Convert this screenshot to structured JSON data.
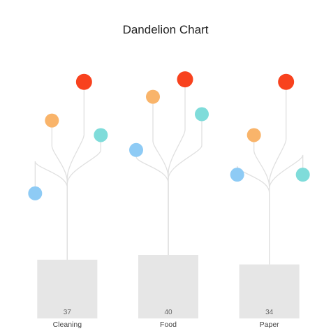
{
  "chart_data": {
    "type": "dandelion",
    "title": "Dandelion Chart",
    "categories": [
      "Cleaning",
      "Food",
      "Paper"
    ],
    "values": [
      37,
      40,
      34
    ],
    "ylim": [
      0,
      45
    ],
    "grid": false,
    "legend": "none",
    "flowers": [
      {
        "category": "Cleaning",
        "points": [
          {
            "color": "#8ecbf5",
            "level": 0.395
          },
          {
            "color": "#f9b46a",
            "level": 0.625
          },
          {
            "color": "#f8421e",
            "level": 0.747
          },
          {
            "color": "#7fdcda",
            "level": 0.579
          }
        ]
      },
      {
        "category": "Food",
        "points": [
          {
            "color": "#8ecbf5",
            "level": 0.532
          },
          {
            "color": "#f9b46a",
            "level": 0.7
          },
          {
            "color": "#f8421e",
            "level": 0.755
          },
          {
            "color": "#7fdcda",
            "level": 0.645
          }
        ]
      },
      {
        "category": "Paper",
        "points": [
          {
            "color": "#8ecbf5",
            "level": 0.454
          },
          {
            "color": "#f9b46a",
            "level": 0.579
          },
          {
            "color": "#f8421e",
            "level": 0.747
          },
          {
            "color": "#7fdcda",
            "level": 0.454
          }
        ]
      }
    ]
  },
  "colors": {
    "bar": "#e6e6e6",
    "stem": "#e0e0e0"
  }
}
